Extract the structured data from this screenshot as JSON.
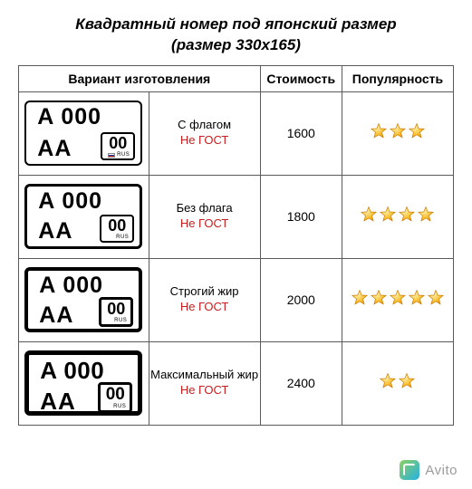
{
  "title_line1": "Квадратный номер под японский размер",
  "title_line2": "(размер 330х165)",
  "headers": {
    "variant": "Вариант изготовления",
    "price": "Стоимость",
    "popularity": "Популярность"
  },
  "gost_text": "Не ГОСТ",
  "plate_text": {
    "top": "A 000",
    "aa": "AA",
    "region": "00",
    "rus": "RUS"
  },
  "rows": [
    {
      "name": "С флагом",
      "price": "1600",
      "stars": 3,
      "flag": true,
      "border": "b1",
      "weight": "w1"
    },
    {
      "name": "Без флага",
      "price": "1800",
      "stars": 4,
      "flag": false,
      "border": "b2",
      "weight": "w2"
    },
    {
      "name": "Строгий жир",
      "price": "2000",
      "stars": 5,
      "flag": false,
      "border": "b3",
      "weight": "w3"
    },
    {
      "name": "Максимальный жир",
      "price": "2400",
      "stars": 2,
      "flag": false,
      "border": "b4",
      "weight": "w4"
    }
  ],
  "star_colors": {
    "fill1": "#fff2b0",
    "fill2": "#f7a600",
    "stroke": "#c97a00"
  },
  "watermark": "Avito"
}
